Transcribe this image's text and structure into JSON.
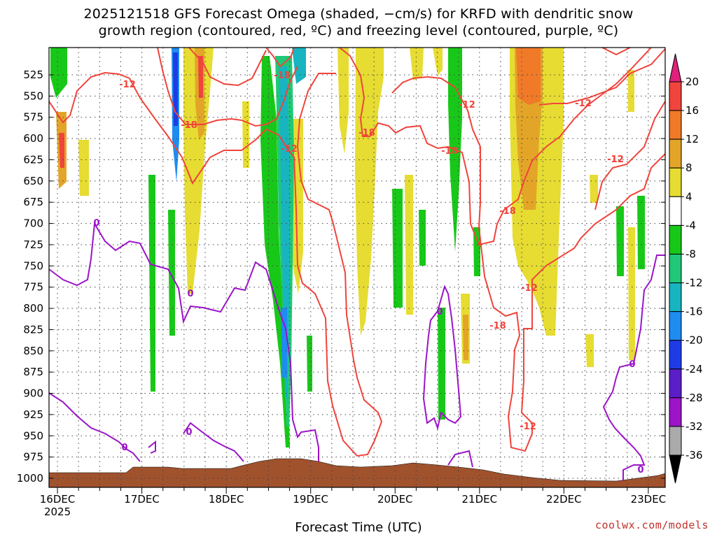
{
  "title_line1": "2025121518 GFS Forecast Omega (shaded, −cm/s) for KRFD with dendritic snow",
  "title_line2": "growth region (contoured, red, ºC) and freezing level (contoured, purple, ºC)",
  "xlabel": "Forecast Time (UTC)",
  "credit": "coolwx.com/models",
  "chart_data": {
    "type": "heatmap",
    "title": "2025121518 GFS Forecast Omega (shaded, −cm/s) for KRFD with dendritic snow growth region (contoured, red, ºC) and freezing level (contoured, purple, ºC)",
    "xlabel": "Forecast Time (UTC)",
    "ylabel": "",
    "x_ticks": [
      "16DEC",
      "17DEC",
      "18DEC",
      "19DEC",
      "20DEC",
      "21DEC",
      "22DEC",
      "23DEC"
    ],
    "x_year_label": "2025",
    "y_ticks": [
      525,
      550,
      575,
      600,
      625,
      650,
      675,
      700,
      725,
      750,
      775,
      800,
      825,
      850,
      875,
      900,
      925,
      950,
      975,
      1000
    ],
    "ylim": [
      1000,
      500
    ],
    "xlim_days": [
      15.9,
      23.2
    ],
    "grid": true,
    "colorbar": {
      "labels": [
        20,
        16,
        12,
        8,
        4,
        -4,
        -8,
        -12,
        -16,
        -20,
        -24,
        -28,
        -32,
        -36
      ],
      "colors": [
        "#e0207a",
        "#f0443c",
        "#f07a28",
        "#e3a528",
        "#e6dc32",
        "#ffffff",
        "#18c818",
        "#20c878",
        "#18b4c0",
        "#1e8cf0",
        "#1e3ce6",
        "#5a1ec8",
        "#9b14c8",
        "#aaaaaa",
        "#000000"
      ]
    },
    "contours": {
      "dgz_labels": [
        "-12",
        "-18",
        "-18",
        "-12",
        "-18",
        "-12",
        "-18",
        "-18",
        "-12",
        "-12",
        "-12",
        "-18",
        "-12",
        "-12"
      ],
      "freezing_labels": [
        "0",
        "0",
        "0",
        "0",
        "0",
        "0",
        "0"
      ]
    },
    "terrain_color": "#a0522d"
  }
}
